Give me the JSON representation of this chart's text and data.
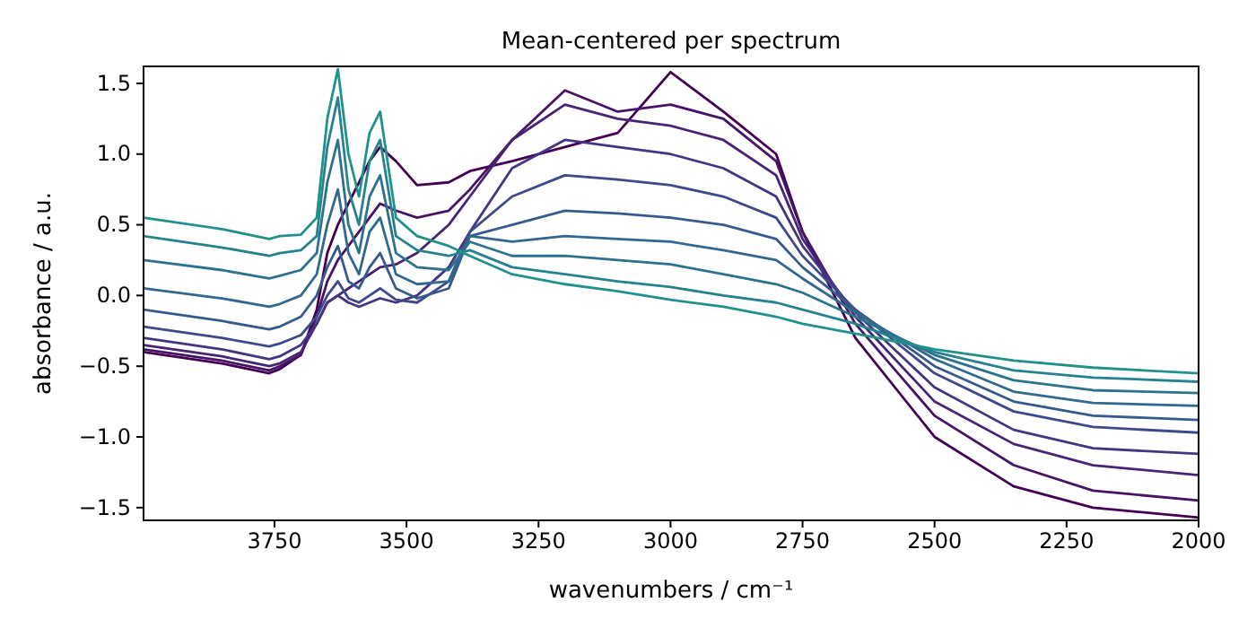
{
  "chart_data": {
    "type": "line",
    "title": "Mean-centered per spectrum",
    "xlabel": "wavenumbers / cm⁻¹",
    "ylabel": "absorbance / a.u.",
    "x": [
      3998,
      3850,
      3760,
      3740,
      3700,
      3670,
      3650,
      3630,
      3610,
      3590,
      3570,
      3550,
      3520,
      3480,
      3420,
      3380,
      3300,
      3200,
      3100,
      3000,
      2900,
      2800,
      2750,
      2650,
      2500,
      2350,
      2200,
      2000
    ],
    "xlim": [
      3998,
      2000
    ],
    "xticks": [
      3750,
      3500,
      3250,
      3000,
      2750,
      2500,
      2250,
      2000
    ],
    "ylim": [
      -1.59,
      1.62
    ],
    "yticks": [
      {
        "value": -1.5,
        "label": "−1.5"
      },
      {
        "value": -1.0,
        "label": "−1.0"
      },
      {
        "value": -0.5,
        "label": "−0.5"
      },
      {
        "value": 0,
        "label": "0.0"
      },
      {
        "value": 0.5,
        "label": "0.5"
      },
      {
        "value": 1.0,
        "label": "1.0"
      },
      {
        "value": 1.5,
        "label": "1.5"
      }
    ],
    "grid": false,
    "marker": "none",
    "line_style": "solid",
    "series": [
      {
        "color": "#440154",
        "values": [
          -0.4,
          -0.48,
          -0.55,
          -0.52,
          -0.42,
          -0.1,
          0.3,
          0.5,
          0.65,
          0.8,
          0.95,
          1.05,
          0.95,
          0.78,
          0.8,
          0.88,
          0.95,
          1.05,
          1.15,
          1.58,
          1.3,
          1.0,
          0.45,
          -0.3,
          -1.0,
          -1.35,
          -1.5,
          -1.57
        ]
      },
      {
        "color": "#471365",
        "values": [
          -0.38,
          -0.46,
          -0.53,
          -0.5,
          -0.42,
          -0.15,
          0.1,
          0.25,
          0.35,
          0.45,
          0.55,
          0.65,
          0.6,
          0.55,
          0.6,
          0.75,
          1.1,
          1.45,
          1.3,
          1.35,
          1.25,
          0.95,
          0.45,
          -0.2,
          -0.85,
          -1.2,
          -1.38,
          -1.45
        ]
      },
      {
        "color": "#482475",
        "values": [
          -0.35,
          -0.43,
          -0.5,
          -0.48,
          -0.4,
          -0.2,
          -0.05,
          0.0,
          0.05,
          0.1,
          0.15,
          0.2,
          0.22,
          0.3,
          0.5,
          0.7,
          1.1,
          1.35,
          1.25,
          1.2,
          1.1,
          0.85,
          0.4,
          -0.15,
          -0.75,
          -1.05,
          -1.2,
          -1.27
        ]
      },
      {
        "color": "#453581",
        "values": [
          -0.3,
          -0.38,
          -0.45,
          -0.43,
          -0.35,
          -0.2,
          -0.05,
          0.0,
          -0.05,
          -0.08,
          -0.05,
          -0.02,
          -0.05,
          0.0,
          0.2,
          0.45,
          0.9,
          1.1,
          1.05,
          1.0,
          0.9,
          0.7,
          0.35,
          -0.12,
          -0.65,
          -0.95,
          -1.08,
          -1.12
        ]
      },
      {
        "color": "#3e4989",
        "values": [
          -0.22,
          -0.3,
          -0.36,
          -0.34,
          -0.28,
          -0.15,
          0.0,
          0.1,
          -0.02,
          -0.05,
          0.0,
          0.05,
          -0.03,
          -0.05,
          0.1,
          0.45,
          0.7,
          0.85,
          0.82,
          0.78,
          0.7,
          0.55,
          0.28,
          -0.1,
          -0.55,
          -0.82,
          -0.93,
          -0.97
        ]
      },
      {
        "color": "#375a8c",
        "values": [
          -0.1,
          -0.18,
          -0.24,
          -0.22,
          -0.15,
          0.0,
          0.2,
          0.35,
          0.1,
          0.05,
          0.2,
          0.3,
          0.05,
          -0.02,
          0.05,
          0.42,
          0.5,
          0.6,
          0.58,
          0.55,
          0.5,
          0.4,
          0.2,
          -0.1,
          -0.5,
          -0.75,
          -0.85,
          -0.88
        ]
      },
      {
        "color": "#31688e",
        "values": [
          0.05,
          -0.02,
          -0.08,
          -0.06,
          0.0,
          0.15,
          0.5,
          0.75,
          0.3,
          0.15,
          0.45,
          0.55,
          0.15,
          0.08,
          0.1,
          0.42,
          0.38,
          0.42,
          0.4,
          0.38,
          0.32,
          0.25,
          0.12,
          -0.12,
          -0.45,
          -0.68,
          -0.76,
          -0.78
        ]
      },
      {
        "color": "#2c728e",
        "values": [
          0.25,
          0.18,
          0.12,
          0.14,
          0.18,
          0.3,
          0.8,
          1.1,
          0.5,
          0.3,
          0.7,
          0.85,
          0.3,
          0.2,
          0.18,
          0.38,
          0.28,
          0.28,
          0.25,
          0.22,
          0.15,
          0.08,
          0.02,
          -0.15,
          -0.42,
          -0.6,
          -0.67,
          -0.69
        ]
      },
      {
        "color": "#26828e",
        "values": [
          0.42,
          0.34,
          0.28,
          0.3,
          0.32,
          0.42,
          1.05,
          1.4,
          0.75,
          0.5,
          0.95,
          1.1,
          0.42,
          0.32,
          0.28,
          0.32,
          0.2,
          0.15,
          0.1,
          0.06,
          0.0,
          -0.05,
          -0.1,
          -0.2,
          -0.4,
          -0.53,
          -0.58,
          -0.61
        ]
      },
      {
        "color": "#21918c",
        "values": [
          0.55,
          0.47,
          0.4,
          0.42,
          0.43,
          0.55,
          1.25,
          1.6,
          1.0,
          0.7,
          1.15,
          1.3,
          0.55,
          0.42,
          0.35,
          0.28,
          0.15,
          0.08,
          0.03,
          -0.03,
          -0.08,
          -0.15,
          -0.2,
          -0.27,
          -0.38,
          -0.46,
          -0.51,
          -0.55
        ]
      }
    ]
  }
}
